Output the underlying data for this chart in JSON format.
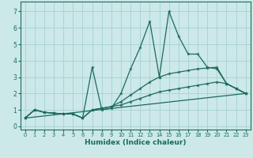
{
  "xlabel": "Humidex (Indice chaleur)",
  "bg_color": "#cce8e8",
  "grid_color": "#aad4d4",
  "line_color": "#1a6b5a",
  "xlim": [
    -0.5,
    23.5
  ],
  "ylim": [
    -0.2,
    7.6
  ],
  "xticks": [
    0,
    1,
    2,
    3,
    4,
    5,
    6,
    7,
    8,
    9,
    10,
    11,
    12,
    13,
    14,
    15,
    16,
    17,
    18,
    19,
    20,
    21,
    22,
    23
  ],
  "yticks": [
    0,
    1,
    2,
    3,
    4,
    5,
    6,
    7
  ],
  "lines": [
    {
      "x": [
        0,
        1,
        2,
        3,
        4,
        5,
        6,
        7,
        8,
        9,
        10,
        11,
        12,
        13,
        14,
        15,
        16,
        17,
        18,
        19,
        20,
        21,
        22,
        23
      ],
      "y": [
        0.5,
        1.0,
        0.85,
        0.8,
        0.75,
        0.75,
        0.5,
        3.6,
        1.0,
        1.1,
        2.0,
        3.5,
        4.8,
        6.4,
        3.0,
        7.0,
        5.5,
        4.4,
        4.4,
        3.6,
        3.5,
        2.6,
        2.3,
        2.0
      ]
    },
    {
      "x": [
        0,
        1,
        2,
        3,
        4,
        5,
        6,
        7,
        8,
        9,
        10,
        11,
        12,
        13,
        14,
        15,
        16,
        17,
        18,
        19,
        20,
        21,
        22,
        23
      ],
      "y": [
        0.5,
        1.0,
        0.85,
        0.8,
        0.75,
        0.75,
        0.5,
        1.0,
        1.1,
        1.2,
        1.5,
        1.9,
        2.3,
        2.7,
        3.0,
        3.2,
        3.3,
        3.4,
        3.5,
        3.55,
        3.6,
        2.6,
        2.3,
        2.0
      ]
    },
    {
      "x": [
        0,
        1,
        2,
        3,
        4,
        5,
        6,
        7,
        8,
        9,
        10,
        11,
        12,
        13,
        14,
        15,
        16,
        17,
        18,
        19,
        20,
        21,
        22,
        23
      ],
      "y": [
        0.5,
        1.0,
        0.85,
        0.8,
        0.75,
        0.75,
        0.5,
        1.0,
        1.1,
        1.2,
        1.3,
        1.5,
        1.7,
        1.9,
        2.1,
        2.2,
        2.3,
        2.4,
        2.5,
        2.6,
        2.7,
        2.6,
        2.3,
        2.0
      ]
    },
    {
      "x": [
        0,
        23
      ],
      "y": [
        0.5,
        2.0
      ]
    }
  ]
}
